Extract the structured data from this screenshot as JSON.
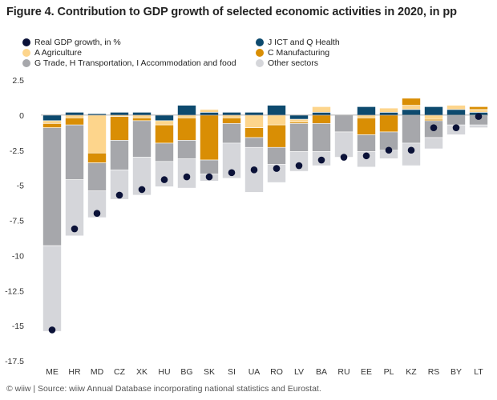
{
  "title": "Figure 4. Contribution to GDP growth of selected economic activities in 2020, in pp",
  "footer": "© wiiw | Source: wiiw Annual Database incorporating national statistics and Eurostat.",
  "legend": [
    {
      "key": "gdp",
      "label": "Real GDP growth, in %",
      "color": "#0b1238",
      "row": 0,
      "col": 0
    },
    {
      "key": "jq",
      "label": "J ICT and Q Health",
      "color": "#0d4a6e",
      "row": 0,
      "col": 1
    },
    {
      "key": "a",
      "label": "A  Agriculture",
      "color": "#fdd58c",
      "row": 1,
      "col": 0
    },
    {
      "key": "c",
      "label": "C Manufacturing",
      "color": "#d98e04",
      "row": 1,
      "col": 1
    },
    {
      "key": "ghi",
      "label": "G Trade, H Transportation, I Accommodation and food",
      "color": "#a6a7ab",
      "row": 2,
      "col": 0
    },
    {
      "key": "other",
      "label": "Other sectors",
      "color": "#d5d6da",
      "row": 2,
      "col": 1
    }
  ],
  "chart_data": {
    "type": "bar",
    "stacked": true,
    "ylim": [
      -17.5,
      2.5
    ],
    "yticks": [
      2.5,
      0,
      -2.5,
      -5,
      -7.5,
      -10,
      -12.5,
      -15,
      -17.5
    ],
    "ytick_labels": [
      "2.5",
      "0",
      "-2.5",
      "-5",
      "-7.5",
      "-10",
      "-12.5",
      "-15",
      "-17.5"
    ],
    "categories": [
      "ME",
      "HR",
      "MD",
      "CZ",
      "XK",
      "HU",
      "BG",
      "SK",
      "SI",
      "UA",
      "RO",
      "LV",
      "BA",
      "RU",
      "EE",
      "PL",
      "KZ",
      "RS",
      "BY",
      "LT"
    ],
    "series": [
      {
        "name": "J ICT and Q Health",
        "color": "#0d4a6e",
        "values": [
          -0.4,
          0.2,
          0.1,
          0.2,
          0.2,
          -0.4,
          0.7,
          0.2,
          0.2,
          0.2,
          0.7,
          -0.3,
          0.2,
          0.0,
          0.6,
          0.2,
          0.4,
          0.6,
          0.4,
          0.2
        ]
      },
      {
        "name": "A  Agriculture",
        "color": "#fdd58c",
        "values": [
          -0.2,
          -0.2,
          -2.7,
          -0.1,
          -0.2,
          -0.3,
          -0.2,
          0.2,
          -0.2,
          -0.9,
          -0.7,
          -0.2,
          0.4,
          0.0,
          -0.2,
          0.3,
          0.3,
          -0.3,
          0.3,
          0.2
        ]
      },
      {
        "name": "C Manufacturing",
        "color": "#d98e04",
        "values": [
          -0.3,
          -0.5,
          -0.7,
          -1.7,
          -0.2,
          -1.3,
          -1.6,
          -3.2,
          -0.4,
          -0.7,
          -1.6,
          -0.1,
          -0.6,
          0.0,
          -1.2,
          -1.2,
          0.5,
          -0.1,
          0.0,
          0.2
        ]
      },
      {
        "name": "G Trade, H Transportation, I Accommodation and food",
        "color": "#a6a7ab",
        "values": [
          -8.4,
          -3.9,
          -2.0,
          -2.1,
          -2.6,
          -1.3,
          -1.3,
          -1.0,
          -1.4,
          -0.7,
          -1.2,
          -2.0,
          -2.0,
          -1.2,
          -1.2,
          -1.3,
          -2.0,
          -1.2,
          -0.7,
          -0.7
        ]
      },
      {
        "name": "Other sectors",
        "color": "#d5d6da",
        "values": [
          -6.1,
          -4.0,
          -1.9,
          -2.1,
          -2.7,
          -1.8,
          -2.1,
          -0.5,
          -2.5,
          -3.2,
          -1.3,
          -1.4,
          -1.0,
          -1.8,
          -1.1,
          -0.6,
          -1.6,
          -0.8,
          -0.7,
          -0.2
        ]
      }
    ],
    "gdp_series": {
      "name": "Real GDP growth, in %",
      "color": "#0b1238",
      "values": [
        -15.3,
        -8.1,
        -7.0,
        -5.7,
        -5.3,
        -4.6,
        -4.4,
        -4.4,
        -4.1,
        -3.9,
        -3.8,
        -3.6,
        -3.2,
        -3.0,
        -2.9,
        -2.5,
        -2.5,
        -0.9,
        -0.9,
        -0.1
      ]
    },
    "grid": false
  }
}
